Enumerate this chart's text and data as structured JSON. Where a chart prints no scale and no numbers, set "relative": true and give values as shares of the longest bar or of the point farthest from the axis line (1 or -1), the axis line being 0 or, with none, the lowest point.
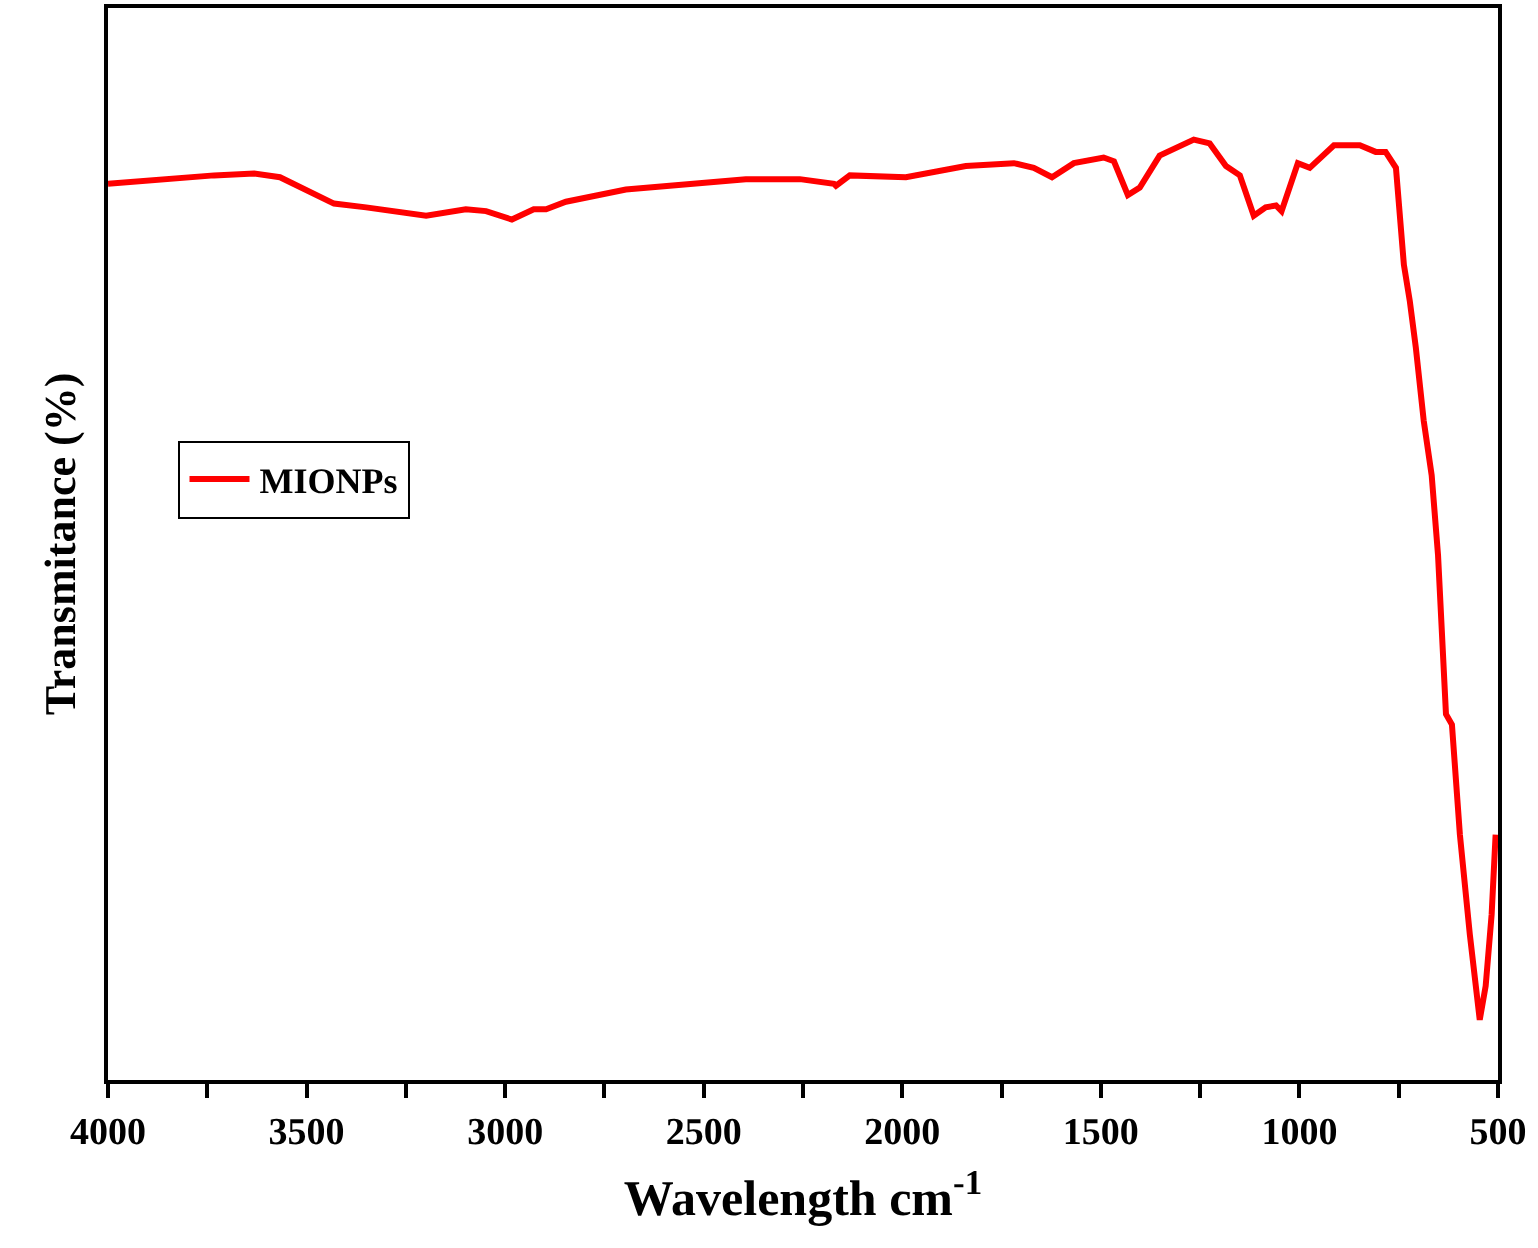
{
  "chart_data": {
    "type": "line",
    "relative": true,
    "xlabel": "Wavelength cm$^{-1}$",
    "ylabel": "Transmitance (%)",
    "xlim": [
      4000,
      500
    ],
    "xticks": [
      4000,
      {
        "value": 3750,
        "label": null
      },
      3500,
      {
        "value": 3250,
        "label": null
      },
      3000,
      {
        "value": 2750,
        "label": null
      },
      2500,
      {
        "value": 2250,
        "label": null
      },
      2000,
      {
        "value": 1750,
        "label": null
      },
      1500,
      {
        "value": 1250,
        "label": null
      },
      1000,
      {
        "value": 750,
        "label": null
      },
      500
    ],
    "legend": "left",
    "marker": "none",
    "line_style": "solid",
    "tick_labels": "x",
    "series": [
      {
        "name": "MIONPs",
        "color": "#ff0000",
        "x": [
          4000,
          3733,
          3632,
          3567,
          3431,
          3350,
          3199,
          3099,
          3048,
          2983,
          2928,
          2897,
          2847,
          2696,
          2394,
          2258,
          2172,
          2167,
          2132,
          1991,
          1840,
          1719,
          1669,
          1623,
          1568,
          1493,
          1467,
          1432,
          1402,
          1352,
          1266,
          1226,
          1185,
          1150,
          1115,
          1085,
          1059,
          1045,
          1004,
          974,
          913,
          848,
          808,
          783,
          757,
          737,
          722,
          707,
          687,
          667,
          651,
          631,
          616,
          596,
          571,
          546,
          531,
          516,
          506
        ],
        "values": [
          0.953,
          0.962,
          0.964,
          0.96,
          0.932,
          0.928,
          0.919,
          0.926,
          0.924,
          0.915,
          0.926,
          0.926,
          0.934,
          0.947,
          0.958,
          0.958,
          0.953,
          0.951,
          0.962,
          0.96,
          0.972,
          0.975,
          0.97,
          0.96,
          0.975,
          0.981,
          0.977,
          0.941,
          0.949,
          0.983,
          1.0,
          0.996,
          0.972,
          0.962,
          0.919,
          0.928,
          0.93,
          0.924,
          0.975,
          0.97,
          0.994,
          0.994,
          0.987,
          0.987,
          0.97,
          0.867,
          0.828,
          0.779,
          0.701,
          0.643,
          0.558,
          0.389,
          0.378,
          0.261,
          0.155,
          0.064,
          0.1,
          0.176,
          0.261
        ]
      }
    ]
  }
}
